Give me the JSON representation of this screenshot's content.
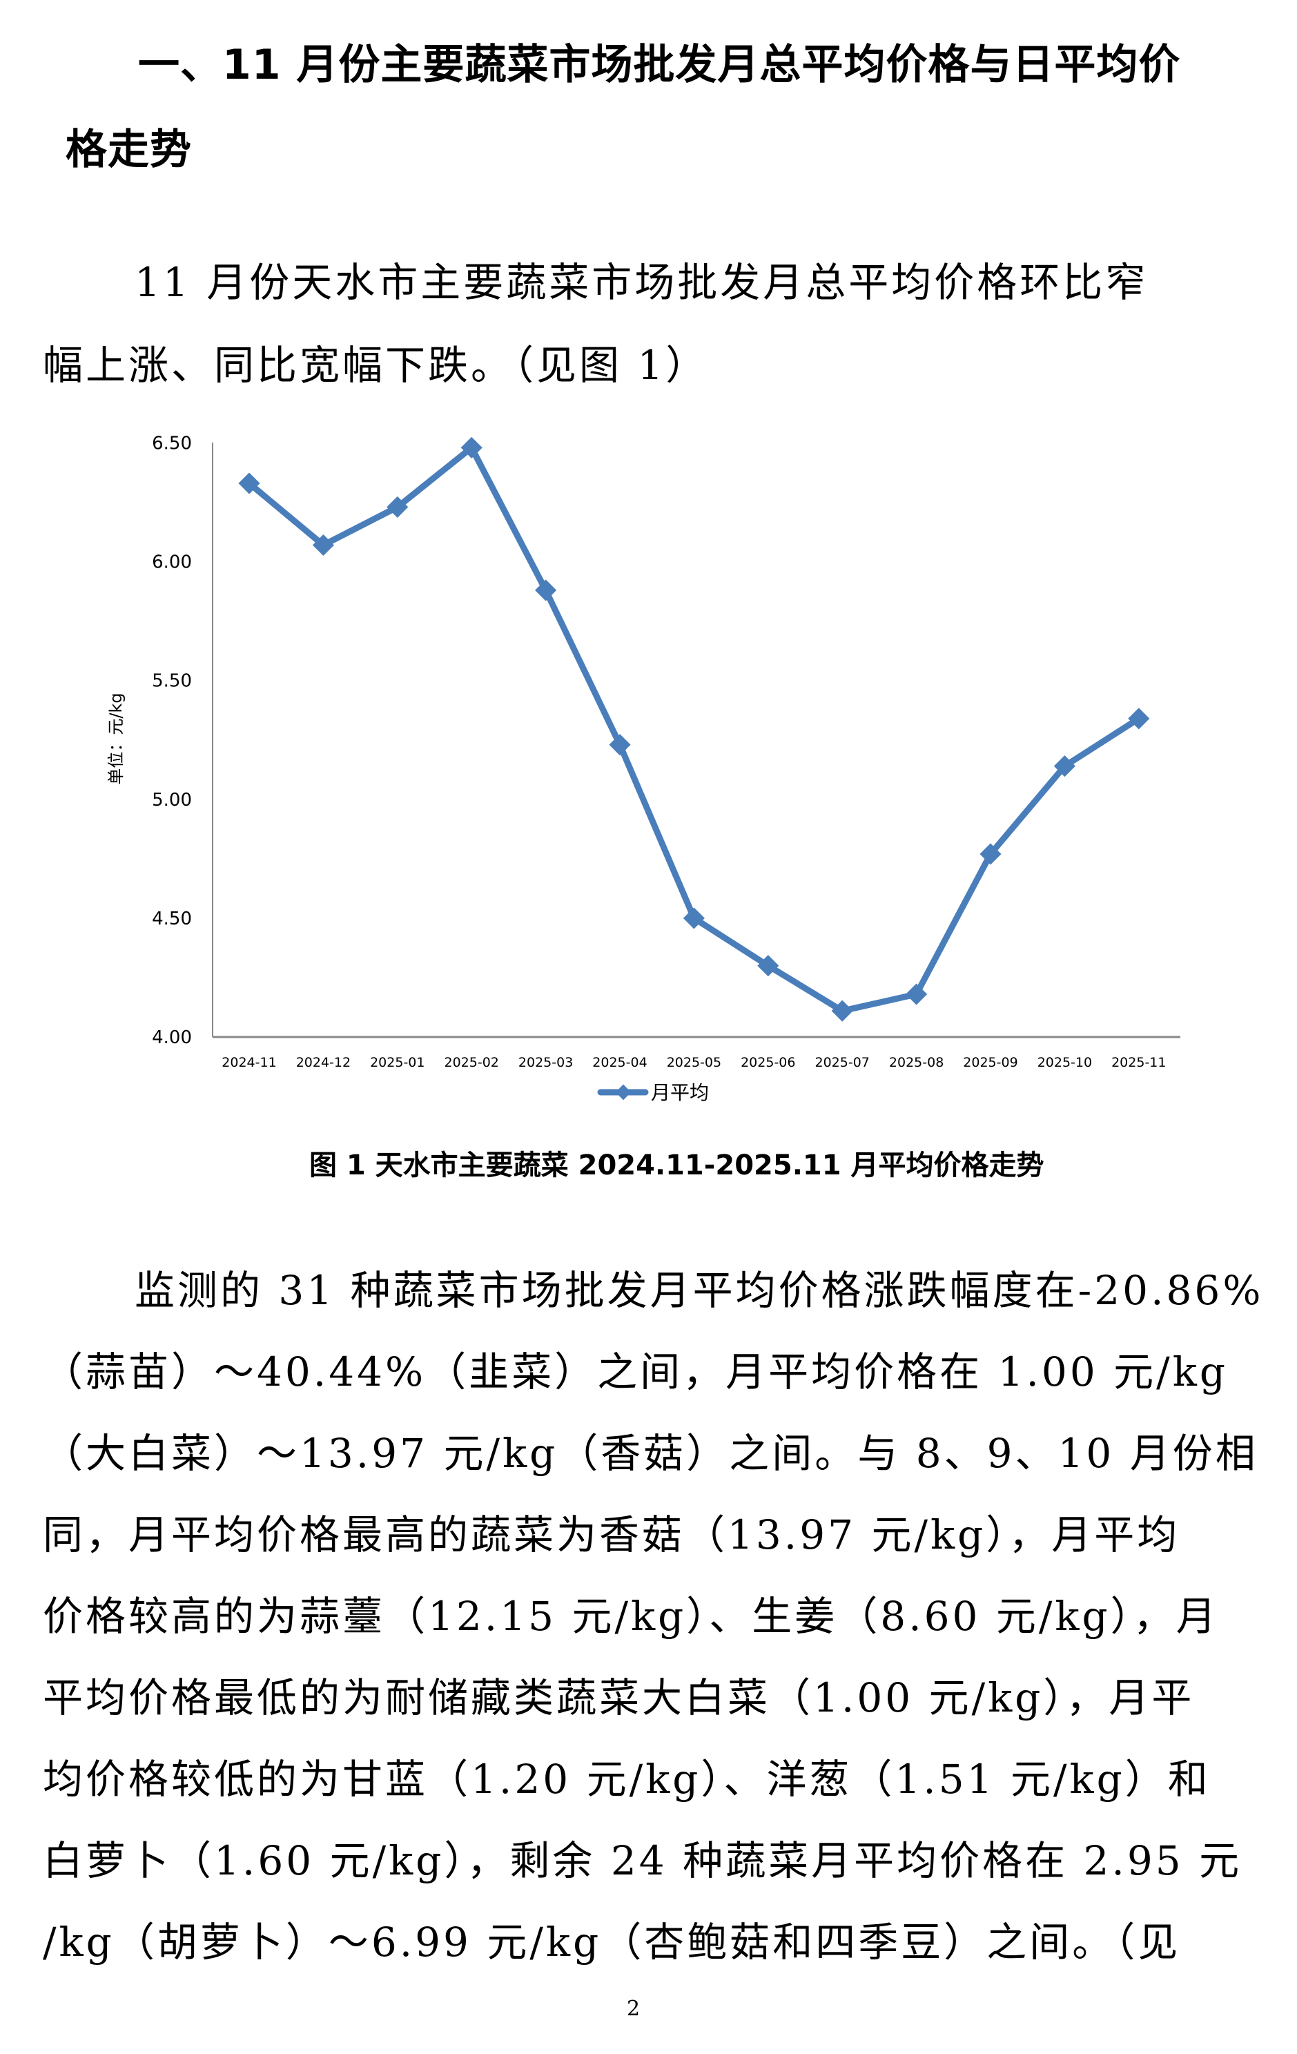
{
  "heading": {
    "line1": "一、11 月份主要蔬菜市场批发月总平均价格与日平均价",
    "line2": "格走势"
  },
  "intro": {
    "line1": "11 月份天水市主要蔬菜市场批发月总平均价格环比窄",
    "line2": "幅上涨、同比宽幅下跌。（见图 1）"
  },
  "figure": {
    "caption": "图 1   天水市主要蔬菜 2024.11-2025.11  月平均价格走势"
  },
  "chart_data": {
    "type": "line",
    "title": "",
    "xlabel": "",
    "ylabel": "单位：元/kg",
    "categories": [
      "2024-11",
      "2024-12",
      "2025-01",
      "2025-02",
      "2025-03",
      "2025-04",
      "2025-05",
      "2025-06",
      "2025-07",
      "2025-08",
      "2025-09",
      "2025-10",
      "2025-11"
    ],
    "series": [
      {
        "name": "月平均",
        "color": "#4a7ebb",
        "marker": "diamond",
        "values": [
          6.33,
          6.07,
          6.23,
          6.48,
          5.88,
          5.23,
          4.5,
          4.3,
          4.11,
          4.18,
          4.77,
          5.14,
          5.34
        ]
      }
    ],
    "ylim": [
      4.0,
      6.5
    ],
    "yticks": [
      "4.00",
      "4.50",
      "5.00",
      "5.50",
      "6.00",
      "6.50"
    ],
    "grid": false,
    "legend_position": "bottom"
  },
  "analysis": {
    "lines": [
      "监测的 31 种蔬菜市场批发月平均价格涨跌幅度在-20.86%",
      "（蒜苗）～40.44%（韭菜）之间，月平均价格在 1.00 元/kg",
      "（大白菜）～13.97 元/kg（香菇）之间。与 8、9、10 月份相",
      "同，月平均价格最高的蔬菜为香菇（13.97 元/kg），月平均",
      "价格较高的为蒜薹（12.15 元/kg）、生姜（8.60 元/kg），月",
      "平均价格最低的为耐储藏类蔬菜大白菜（1.00 元/kg），月平",
      "均价格较低的为甘蓝（1.20 元/kg）、洋葱（1.51 元/kg）和",
      "白萝卜（1.60 元/kg），剩余 24 种蔬菜月平均价格在 2.95 元",
      "/kg（胡萝卜）～6.99 元/kg（杏鲍菇和四季豆）之间。（见"
    ]
  },
  "footer": {
    "page_number": "2"
  }
}
